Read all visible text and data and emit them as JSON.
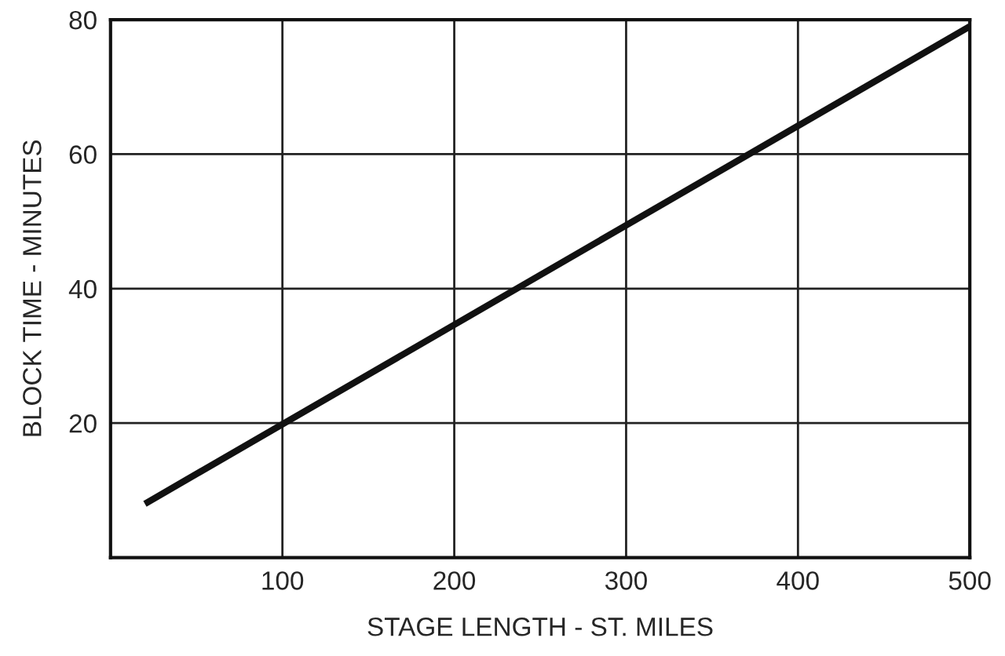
{
  "chart_data": {
    "type": "line",
    "xlabel": "STAGE LENGTH - ST. MILES",
    "ylabel": "BLOCK TIME - MINUTES",
    "series": [
      {
        "color": "#111111",
        "x": [
          20,
          500
        ],
        "values": [
          8,
          79
        ]
      }
    ],
    "xlim": [
      0,
      500
    ],
    "ylim": [
      0,
      80
    ],
    "xticks": [
      100,
      200,
      300,
      400,
      500
    ],
    "yticks": [
      20,
      40,
      60,
      80
    ],
    "grid": true,
    "marker": "none",
    "line_style": "solid"
  }
}
